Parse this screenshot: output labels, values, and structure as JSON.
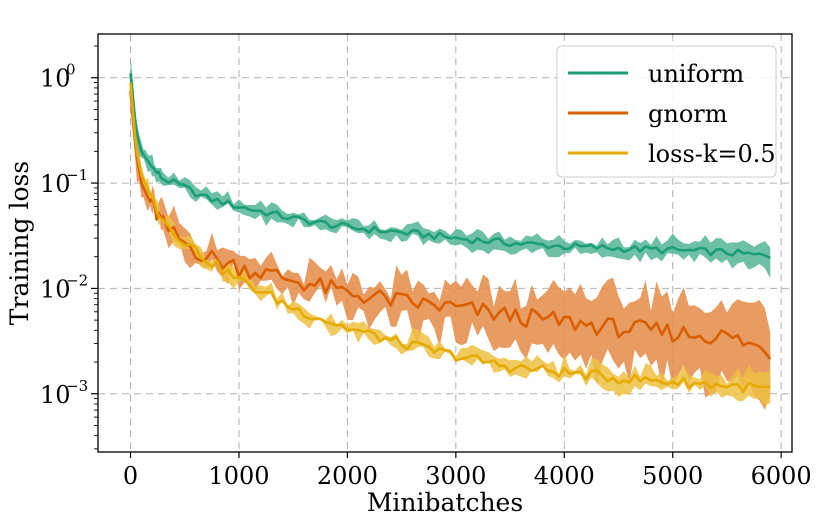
{
  "chart_data": {
    "type": "line",
    "title": "",
    "xlabel": "Minibatches",
    "ylabel": "Training loss",
    "yscale": "log",
    "xlim": [
      -300,
      6100
    ],
    "ylim": [
      0.00028,
      2.6
    ],
    "grid": true,
    "legend_position": "top-right",
    "x_ticks": [
      0,
      1000,
      2000,
      3000,
      4000,
      5000,
      6000
    ],
    "x_tick_labels": [
      "0",
      "1000",
      "2000",
      "3000",
      "4000",
      "5000",
      "6000"
    ],
    "y_ticks": [
      1,
      0.1,
      0.01,
      0.001
    ],
    "y_tick_labels": [
      {
        "base": "10",
        "exp": "0"
      },
      {
        "base": "10",
        "exp": "−1"
      },
      {
        "base": "10",
        "exp": "−2"
      },
      {
        "base": "10",
        "exp": "−3"
      }
    ],
    "x": [
      0,
      50,
      100,
      200,
      300,
      400,
      500,
      700,
      1000,
      1500,
      2000,
      2500,
      3000,
      3500,
      4000,
      4500,
      5000,
      5500,
      5900
    ],
    "series": [
      {
        "name": "uniform",
        "color": "#1b9e77",
        "band_color": "#53b597",
        "values": [
          1.1,
          0.32,
          0.2,
          0.14,
          0.11,
          0.1,
          0.09,
          0.072,
          0.06,
          0.046,
          0.038,
          0.034,
          0.03,
          0.027,
          0.025,
          0.024,
          0.023,
          0.022,
          0.02
        ],
        "lower": [
          0.85,
          0.26,
          0.17,
          0.12,
          0.095,
          0.085,
          0.077,
          0.063,
          0.052,
          0.04,
          0.033,
          0.029,
          0.026,
          0.023,
          0.021,
          0.02,
          0.019,
          0.018,
          0.014
        ],
        "upper": [
          1.6,
          0.4,
          0.24,
          0.17,
          0.13,
          0.12,
          0.105,
          0.085,
          0.07,
          0.053,
          0.044,
          0.039,
          0.035,
          0.031,
          0.029,
          0.028,
          0.028,
          0.027,
          0.027
        ]
      },
      {
        "name": "gnorm",
        "color": "#d95f02",
        "band_color": "#e48b45",
        "values": [
          0.75,
          0.2,
          0.1,
          0.06,
          0.04,
          0.032,
          0.027,
          0.02,
          0.016,
          0.012,
          0.009,
          0.0075,
          0.0065,
          0.0055,
          0.0048,
          0.0042,
          0.0038,
          0.0035,
          0.0025
        ],
        "lower": [
          0.55,
          0.14,
          0.08,
          0.048,
          0.033,
          0.027,
          0.022,
          0.016,
          0.012,
          0.0085,
          0.006,
          0.0045,
          0.0036,
          0.0028,
          0.0022,
          0.0018,
          0.0015,
          0.0013,
          0.0009
        ],
        "upper": [
          1.1,
          0.26,
          0.13,
          0.075,
          0.05,
          0.04,
          0.034,
          0.025,
          0.021,
          0.016,
          0.013,
          0.011,
          0.01,
          0.009,
          0.0085,
          0.008,
          0.0075,
          0.007,
          0.0055
        ]
      },
      {
        "name": "loss-k=0.5",
        "color": "#e6ab02",
        "band_color": "#edc043",
        "values": [
          0.9,
          0.22,
          0.12,
          0.07,
          0.045,
          0.035,
          0.028,
          0.019,
          0.012,
          0.0065,
          0.0042,
          0.003,
          0.0023,
          0.0018,
          0.0016,
          0.0014,
          0.0013,
          0.0012,
          0.0011
        ],
        "lower": [
          0.7,
          0.18,
          0.1,
          0.06,
          0.039,
          0.03,
          0.024,
          0.016,
          0.0105,
          0.0057,
          0.0036,
          0.0026,
          0.002,
          0.0016,
          0.0014,
          0.0012,
          0.0011,
          0.001,
          0.0008
        ],
        "upper": [
          1.2,
          0.27,
          0.14,
          0.08,
          0.052,
          0.04,
          0.032,
          0.022,
          0.014,
          0.0075,
          0.0049,
          0.0035,
          0.0027,
          0.0021,
          0.0019,
          0.0017,
          0.0016,
          0.0015,
          0.0015
        ]
      }
    ]
  }
}
